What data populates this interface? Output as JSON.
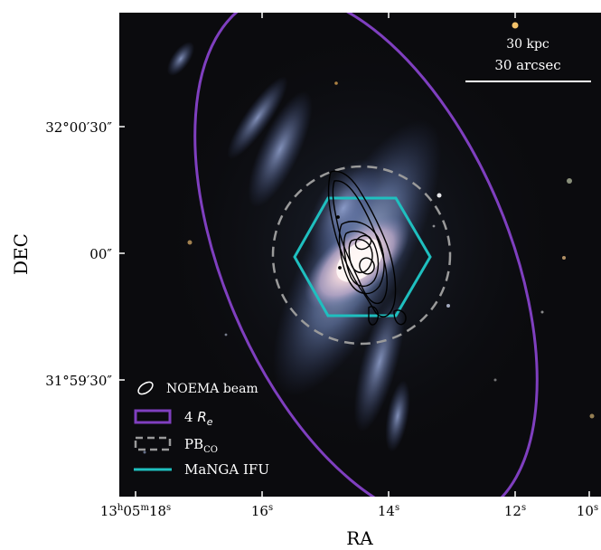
{
  "axes": {
    "xlabel": "RA",
    "ylabel": "DEC",
    "x_ticks": [
      {
        "h": "13",
        "m": "05",
        "s": "18"
      },
      {
        "s": "16"
      },
      {
        "s": "14"
      },
      {
        "s": "12"
      },
      {
        "s": "10"
      }
    ],
    "y_ticks": [
      {
        "label": "32°00′30″"
      },
      {
        "label": "00″"
      },
      {
        "label": "31°59′30″"
      }
    ]
  },
  "scalebar": {
    "kpc_label": "30 kpc",
    "arcsec_label": "30 arcsec"
  },
  "legend": {
    "items": [
      {
        "label": "NOEMA beam",
        "icon": "ellipse-icon",
        "color": "#ffffff"
      },
      {
        "label": "4 ",
        "math": "R",
        "sub": "e",
        "icon": "rectangle-icon",
        "color": "#7f3fbf"
      },
      {
        "label": "PB",
        "sub": "CO",
        "icon": "dashed-rectangle-icon",
        "color": "#9a9a9a"
      },
      {
        "label": "MaNGA IFU",
        "icon": "line-icon",
        "color": "#1fbfbf"
      }
    ]
  },
  "colors": {
    "re_ellipse": "#7f3fbf",
    "primary_beam": "#9a9a9a",
    "ifu": "#1fbfbf",
    "contours": "#000000",
    "sky_background": "#0b0b0e"
  }
}
